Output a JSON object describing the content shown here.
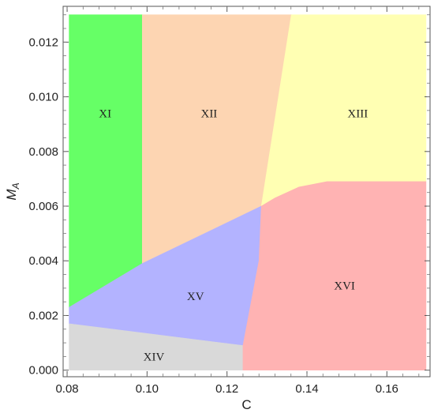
{
  "chart_data": {
    "type": "area",
    "title": "",
    "xlabel": "C",
    "ylabel_main": "M",
    "ylabel_sub": "A",
    "xlim": [
      0.08,
      0.17
    ],
    "ylim": [
      0.0,
      0.013
    ],
    "x_ticks": [
      0.08,
      0.1,
      0.12,
      0.14,
      0.16
    ],
    "x_tick_labels": [
      "0.08",
      "0.10",
      "0.12",
      "0.14",
      "0.16"
    ],
    "y_ticks": [
      0.0,
      0.002,
      0.004,
      0.006,
      0.008,
      0.01,
      0.012
    ],
    "y_tick_labels": [
      "0.000",
      "0.002",
      "0.004",
      "0.006",
      "0.008",
      "0.010",
      "0.012"
    ],
    "grid": false,
    "regions": [
      {
        "label": "XI",
        "color": "#66ff66",
        "polygon": [
          [
            0.0805,
            0.013
          ],
          [
            0.0988,
            0.013
          ],
          [
            0.0988,
            0.0039
          ],
          [
            0.0805,
            0.0023
          ]
        ],
        "label_pos": [
          0.0895,
          0.0094
        ]
      },
      {
        "label": "XII",
        "color": "#fdd5b2",
        "polygon": [
          [
            0.0988,
            0.013
          ],
          [
            0.1361,
            0.013
          ],
          [
            0.1286,
            0.006
          ],
          [
            0.0988,
            0.0039
          ]
        ],
        "label_pos": [
          0.1155,
          0.0094
        ]
      },
      {
        "label": "XIII",
        "color": "#ffffb3",
        "polygon": [
          [
            0.1361,
            0.013
          ],
          [
            0.1698,
            0.013
          ],
          [
            0.1698,
            0.0069
          ],
          [
            0.145,
            0.0069
          ],
          [
            0.138,
            0.0067
          ],
          [
            0.132,
            0.0063
          ],
          [
            0.1286,
            0.006
          ]
        ],
        "label_pos": [
          0.1527,
          0.0094
        ]
      },
      {
        "label": "XV",
        "color": "#b3b3ff",
        "polygon": [
          [
            0.0805,
            0.0023
          ],
          [
            0.0988,
            0.0039
          ],
          [
            0.1286,
            0.006
          ],
          [
            0.128,
            0.004
          ],
          [
            0.124,
            0.0009
          ],
          [
            0.0805,
            0.0017
          ]
        ],
        "label_pos": [
          0.1121,
          0.0027
        ]
      },
      {
        "label": "XIV",
        "color": "#d9d9d9",
        "polygon": [
          [
            0.0805,
            0.0017
          ],
          [
            0.124,
            0.0009
          ],
          [
            0.124,
            0.0
          ],
          [
            0.0805,
            0.0
          ]
        ],
        "label_pos": [
          0.1017,
          0.0005
        ]
      },
      {
        "label": "XVI",
        "color": "#ffb3b3",
        "polygon": [
          [
            0.1286,
            0.006
          ],
          [
            0.132,
            0.0063
          ],
          [
            0.138,
            0.0067
          ],
          [
            0.145,
            0.0069
          ],
          [
            0.1698,
            0.0069
          ],
          [
            0.1698,
            0.0
          ],
          [
            0.124,
            0.0
          ],
          [
            0.124,
            0.0009
          ],
          [
            0.128,
            0.004
          ]
        ],
        "label_pos": [
          0.1494,
          0.0031
        ]
      }
    ]
  }
}
